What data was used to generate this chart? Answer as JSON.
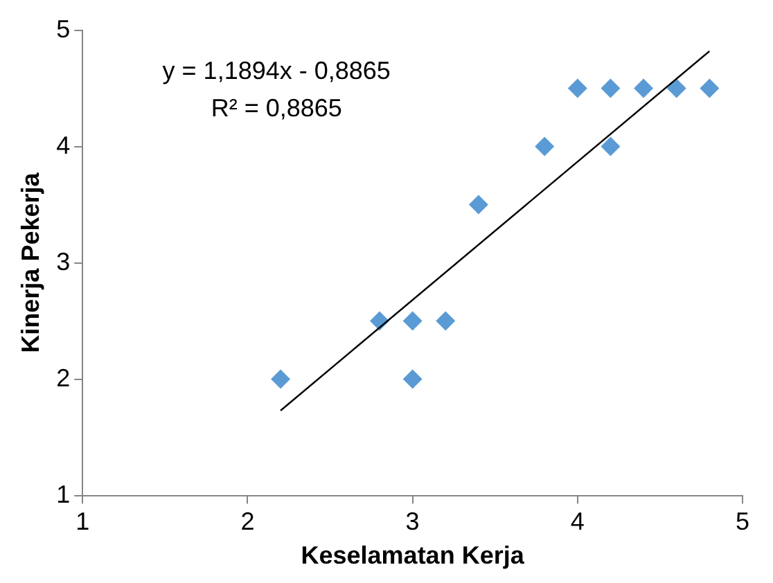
{
  "chart_data": {
    "type": "scatter",
    "xlabel": "Keselamatan Kerja",
    "ylabel": "Kinerja Pekerja",
    "xlim": [
      1,
      5
    ],
    "ylim": [
      1,
      5
    ],
    "xticks": [
      1,
      2,
      3,
      4,
      5
    ],
    "yticks": [
      1,
      2,
      3,
      4,
      5
    ],
    "grid": false,
    "legend": false,
    "marker": "diamond",
    "annotations": [
      "y = 1,1894x - 0,8865",
      "R² = 0,8865"
    ],
    "series": [
      {
        "type": "scatter",
        "color": "#5b9bd5",
        "x": [
          2.2,
          2.8,
          3,
          3,
          3.2,
          3.4,
          3.8,
          4,
          4.2,
          4.2,
          4.4,
          4.6,
          4.8
        ],
        "values": [
          2,
          2.5,
          2.5,
          2,
          2.5,
          3.5,
          4,
          4.5,
          4.5,
          4,
          4.5,
          4.5,
          4.5
        ]
      },
      {
        "type": "line",
        "color": "#000000",
        "marker": "none",
        "line_style": "solid",
        "x": [
          2.2,
          4.8
        ],
        "values": [
          1.73,
          4.82
        ]
      }
    ]
  }
}
